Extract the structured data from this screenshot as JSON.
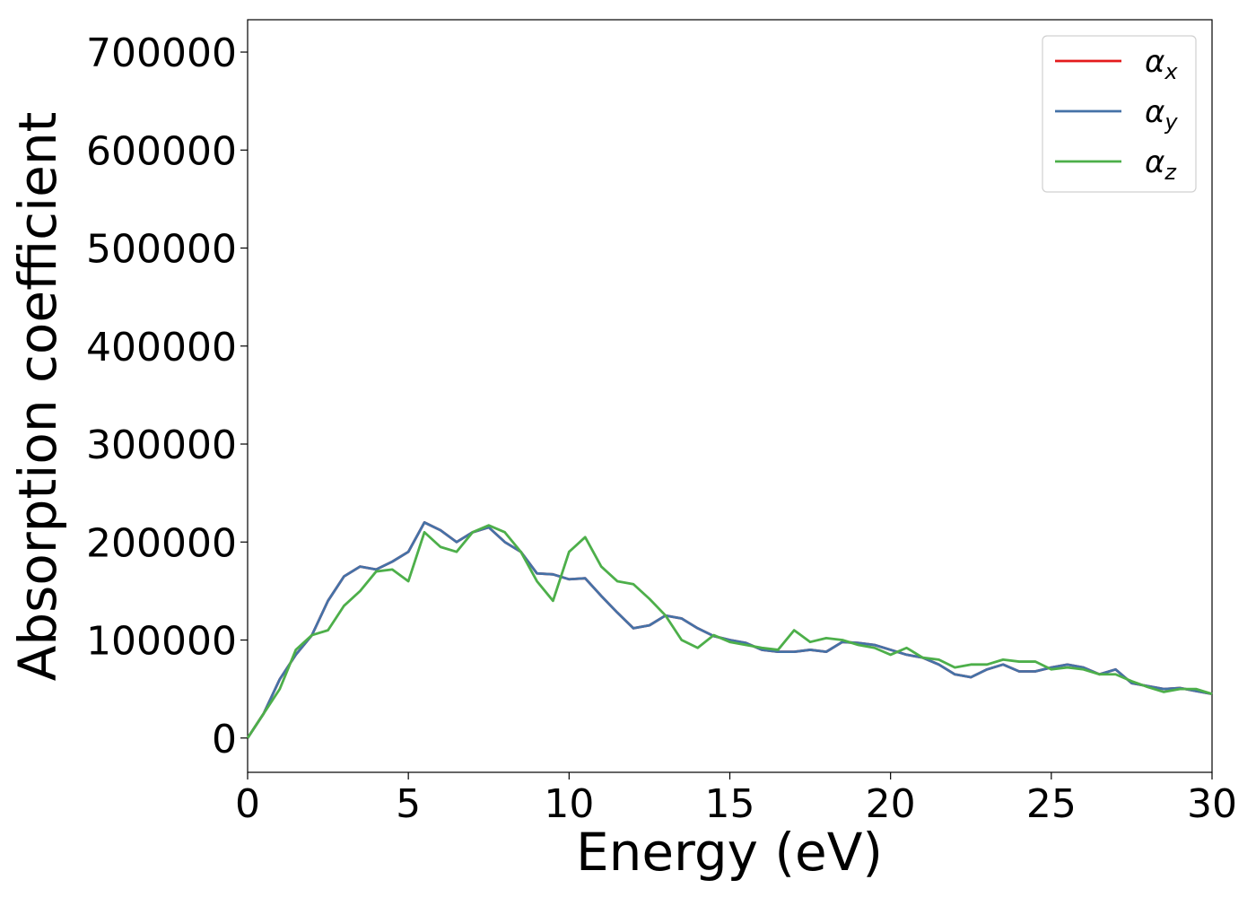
{
  "chart_data": {
    "type": "line",
    "xlabel": "Energy (eV)",
    "ylabel": "Absorption coefficient",
    "x": [
      0,
      0.5,
      1,
      1.5,
      2,
      2.5,
      3,
      3.5,
      4,
      4.5,
      5,
      5.5,
      6,
      6.5,
      7,
      7.5,
      8,
      8.5,
      9,
      9.5,
      10,
      10.5,
      11,
      11.5,
      12,
      12.5,
      13,
      13.5,
      14,
      14.5,
      15,
      15.5,
      16,
      16.5,
      17,
      17.5,
      18,
      18.5,
      19,
      19.5,
      20,
      20.5,
      21,
      21.5,
      22,
      22.5,
      23,
      23.5,
      24,
      24.5,
      25,
      25.5,
      26,
      26.5,
      27,
      27.5,
      28,
      28.5,
      29,
      29.5,
      30
    ],
    "series": [
      {
        "name": "αx",
        "color": "#e41a1c",
        "values": [
          0,
          25000,
          60000,
          85000,
          105000,
          140000,
          165000,
          175000,
          172000,
          180000,
          190000,
          220000,
          212000,
          200000,
          210000,
          215000,
          200000,
          190000,
          168000,
          167000,
          162000,
          163000,
          145000,
          128000,
          112000,
          115000,
          125000,
          122000,
          112000,
          104000,
          100000,
          97000,
          90000,
          88000,
          88000,
          90000,
          88000,
          98000,
          97000,
          95000,
          90000,
          85000,
          82000,
          75000,
          65000,
          62000,
          70000,
          75000,
          68000,
          68000,
          72000,
          75000,
          72000,
          65000,
          70000,
          56000,
          53000,
          50000,
          51000,
          48000,
          45000
        ]
      },
      {
        "name": "αy",
        "color": "#4572a7",
        "values": [
          0,
          25000,
          60000,
          85000,
          105000,
          140000,
          165000,
          175000,
          172000,
          180000,
          190000,
          220000,
          212000,
          200000,
          210000,
          215000,
          200000,
          190000,
          168000,
          167000,
          162000,
          163000,
          145000,
          128000,
          112000,
          115000,
          125000,
          122000,
          112000,
          104000,
          100000,
          97000,
          90000,
          88000,
          88000,
          90000,
          88000,
          98000,
          97000,
          95000,
          90000,
          85000,
          82000,
          75000,
          65000,
          62000,
          70000,
          75000,
          68000,
          68000,
          72000,
          75000,
          72000,
          65000,
          70000,
          56000,
          53000,
          50000,
          51000,
          48000,
          45000
        ]
      },
      {
        "name": "αz",
        "color": "#4daf4a",
        "values": [
          0,
          25000,
          50000,
          90000,
          105000,
          110000,
          135000,
          150000,
          170000,
          172000,
          160000,
          210000,
          195000,
          190000,
          210000,
          217000,
          210000,
          190000,
          160000,
          140000,
          190000,
          205000,
          175000,
          160000,
          157000,
          142000,
          125000,
          100000,
          92000,
          105000,
          98000,
          95000,
          92000,
          90000,
          110000,
          98000,
          102000,
          100000,
          95000,
          92000,
          85000,
          92000,
          82000,
          80000,
          72000,
          75000,
          75000,
          80000,
          78000,
          78000,
          70000,
          72000,
          70000,
          65000,
          65000,
          58000,
          52000,
          47000,
          50000,
          50000,
          45000
        ]
      }
    ],
    "xlim": [
      0,
      30
    ],
    "xticks": [
      0,
      5,
      10,
      15,
      20,
      25,
      30
    ],
    "ylim": [
      -35000,
      733000
    ],
    "yticks": [
      0,
      100000,
      200000,
      300000,
      400000,
      500000,
      600000,
      700000
    ],
    "legend": "upper right"
  }
}
